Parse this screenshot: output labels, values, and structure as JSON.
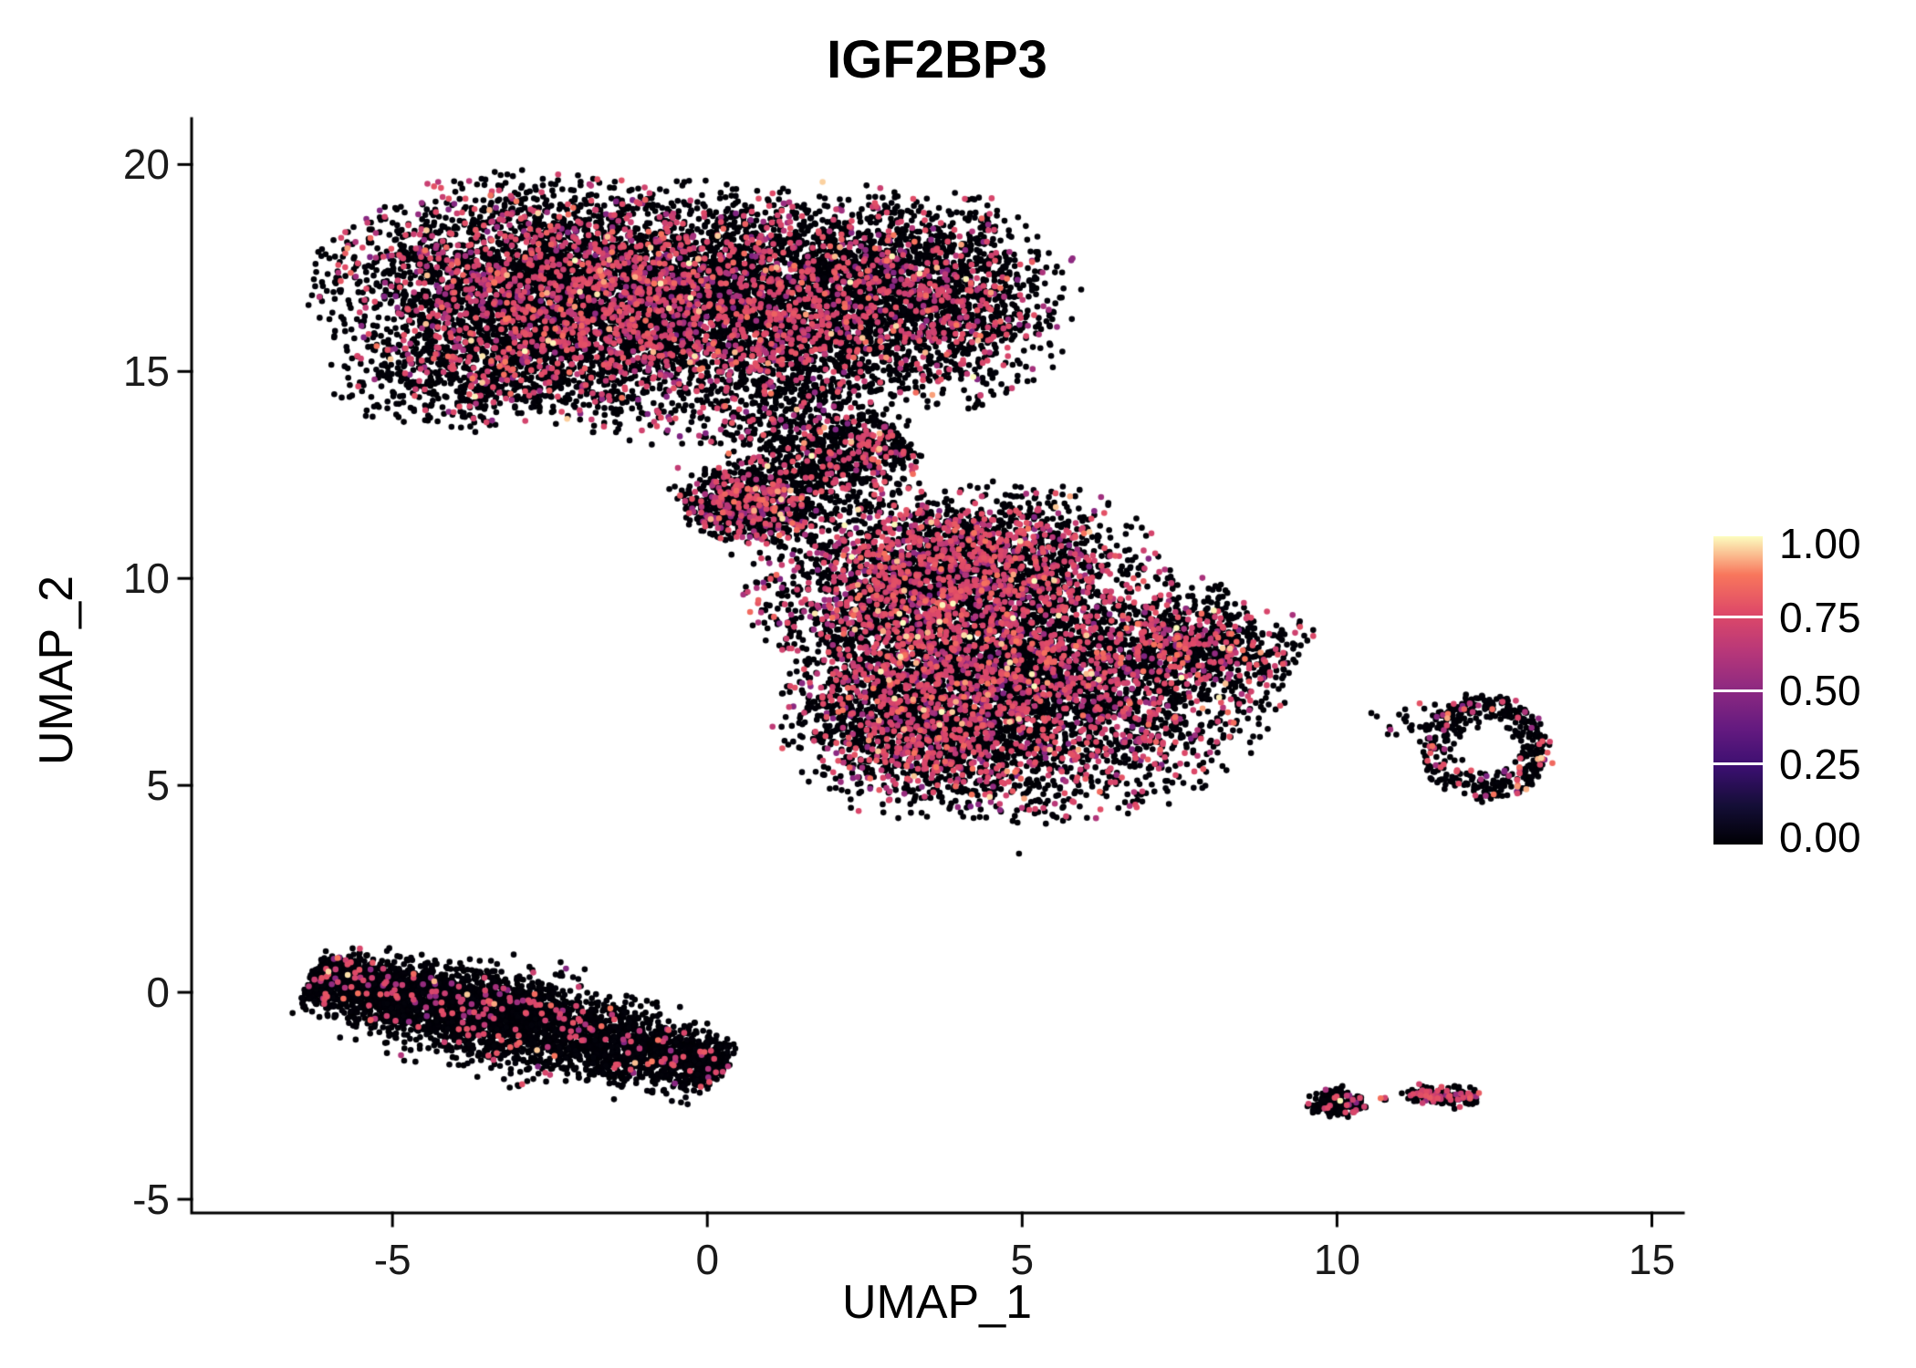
{
  "chart_data": {
    "type": "scatter",
    "title": "IGF2BP3",
    "xlabel": "UMAP_1",
    "ylabel": "UMAP_2",
    "x_ticks": [
      {
        "label": "-5",
        "value": -5
      },
      {
        "label": "0",
        "value": 0
      },
      {
        "label": "5",
        "value": 5
      },
      {
        "label": "10",
        "value": 10
      },
      {
        "label": "15",
        "value": 15
      }
    ],
    "y_ticks": [
      {
        "label": "20",
        "value": 20
      },
      {
        "label": "15",
        "value": 15
      },
      {
        "label": "10",
        "value": 10
      },
      {
        "label": "5",
        "value": 5
      },
      {
        "label": "0",
        "value": 0
      },
      {
        "label": "-5",
        "value": -5
      }
    ],
    "xlim": [
      -8.19,
      15.5
    ],
    "ylim": [
      -5.33,
      21.11
    ],
    "grid": false,
    "background": "#ffffff",
    "point_radius_px": 3.3,
    "legend": {
      "position": "right",
      "tick_labels": [
        {
          "label": "1.00",
          "value": 1.0
        },
        {
          "label": "0.75",
          "value": 0.75
        },
        {
          "label": "0.50",
          "value": 0.5
        },
        {
          "label": "0.25",
          "value": 0.25
        },
        {
          "label": "0.00",
          "value": 0.0
        }
      ],
      "bar_tick_values": [
        0.75,
        0.5,
        0.25
      ],
      "colormap": "magma",
      "colormap_stops": [
        {
          "t": 0.0,
          "c": "#000004"
        },
        {
          "t": 0.125,
          "c": "#140E36"
        },
        {
          "t": 0.25,
          "c": "#3B0F70"
        },
        {
          "t": 0.375,
          "c": "#641A80"
        },
        {
          "t": 0.5,
          "c": "#8C2981"
        },
        {
          "t": 0.625,
          "c": "#B73779"
        },
        {
          "t": 0.75,
          "c": "#DE4968"
        },
        {
          "t": 0.875,
          "c": "#F8765C"
        },
        {
          "t": 1.0,
          "c": "#FCFDBF"
        }
      ]
    },
    "clusters": [
      {
        "name": "upper-blob-a",
        "type": "gauss",
        "cx": -2.7,
        "cy": 17.0,
        "sx": 1.6,
        "sy": 1.25,
        "n": 3600,
        "colored_fraction": 0.23
      },
      {
        "name": "upper-blob-b",
        "type": "gauss",
        "cx": -0.3,
        "cy": 16.4,
        "sx": 1.5,
        "sy": 1.4,
        "n": 3000,
        "colored_fraction": 0.23
      },
      {
        "name": "upper-blob-c",
        "type": "gauss",
        "cx": 2.1,
        "cy": 17.0,
        "sx": 1.2,
        "sy": 1.15,
        "n": 1700,
        "colored_fraction": 0.2
      },
      {
        "name": "upper-blob-d",
        "type": "gauss",
        "cx": 3.8,
        "cy": 16.7,
        "sx": 0.95,
        "sy": 1.15,
        "n": 1300,
        "colored_fraction": 0.17
      },
      {
        "name": "upper-tail",
        "type": "gauss",
        "cx": -3.6,
        "cy": 14.8,
        "sx": 1.1,
        "sy": 0.55,
        "n": 500,
        "colored_fraction": 0.15
      },
      {
        "name": "neck",
        "type": "gauss",
        "cx": 1.6,
        "cy": 14.0,
        "sx": 0.7,
        "sy": 0.85,
        "n": 430,
        "colored_fraction": 0.15
      },
      {
        "name": "bridge-band",
        "type": "band",
        "x1": -0.1,
        "y1": 11.35,
        "x2": 3.1,
        "y2": 13.4,
        "sigma": 0.45,
        "n": 1100,
        "colored_fraction": 0.2
      },
      {
        "name": "bridge-knot",
        "type": "gauss",
        "cx": 0.7,
        "cy": 11.8,
        "sx": 0.5,
        "sy": 0.45,
        "n": 350,
        "colored_fraction": 0.3
      },
      {
        "name": "mid-blob-a",
        "type": "gauss",
        "cx": 3.5,
        "cy": 9.7,
        "sx": 1.3,
        "sy": 1.05,
        "n": 2400,
        "colored_fraction": 0.3
      },
      {
        "name": "mid-blob-b",
        "type": "gauss",
        "cx": 5.3,
        "cy": 7.5,
        "sx": 1.7,
        "sy": 1.5,
        "n": 3800,
        "colored_fraction": 0.28
      },
      {
        "name": "mid-blob-c",
        "type": "gauss",
        "cx": 3.3,
        "cy": 6.6,
        "sx": 1.0,
        "sy": 1.05,
        "n": 1500,
        "colored_fraction": 0.26
      },
      {
        "name": "mid-blob-d",
        "type": "gauss",
        "cx": 4.6,
        "cy": 10.8,
        "sx": 1.1,
        "sy": 0.7,
        "n": 700,
        "colored_fraction": 0.3
      },
      {
        "name": "mid-tip",
        "type": "gauss",
        "cx": 7.8,
        "cy": 8.3,
        "sx": 0.85,
        "sy": 0.55,
        "n": 600,
        "colored_fraction": 0.25
      },
      {
        "name": "right-ring",
        "type": "ring",
        "cx": 12.35,
        "cy": 5.9,
        "rx": 1.0,
        "ry": 1.25,
        "inner": 0.45,
        "n": 430,
        "colored_fraction": 0.13
      },
      {
        "name": "ring-outliers",
        "type": "gauss",
        "cx": 11.3,
        "cy": 6.6,
        "sx": 0.45,
        "sy": 0.3,
        "n": 22,
        "colored_fraction": 0.1
      },
      {
        "name": "lower-band",
        "type": "band",
        "x1": -6.3,
        "y1": 0.3,
        "x2": 0.25,
        "y2": -1.8,
        "sigma": 0.4,
        "n": 3400,
        "colored_fraction": 0.05
      },
      {
        "name": "lower-band-top",
        "type": "band",
        "x1": -6.1,
        "y1": 0.55,
        "x2": -2.2,
        "y2": -0.5,
        "sigma": 0.25,
        "n": 700,
        "colored_fraction": 0.07
      },
      {
        "name": "small-a",
        "type": "gauss",
        "cx": 10.0,
        "cy": -2.65,
        "sx": 0.22,
        "sy": 0.17,
        "n": 170,
        "colored_fraction": 0.12
      },
      {
        "name": "small-b",
        "type": "band",
        "x1": 11.15,
        "y1": -2.45,
        "x2": 12.2,
        "y2": -2.55,
        "sigma": 0.09,
        "n": 160,
        "colored_fraction": 0.3
      },
      {
        "name": "small-dot",
        "type": "gauss",
        "cx": 10.75,
        "cy": -2.55,
        "sx": 0.05,
        "sy": 0.04,
        "n": 4,
        "colored_fraction": 0.5
      }
    ],
    "outliers": [
      {
        "x": 4.95,
        "y": 3.35,
        "v": 0.0
      },
      {
        "x": 9.0,
        "y": 8.25,
        "v": 0.0
      },
      {
        "x": 0.5,
        "y": 13.9,
        "v": 0.0
      },
      {
        "x": 10.05,
        "y": -2.62,
        "v": 1.0
      },
      {
        "x": 3.4,
        "y": 12.1,
        "v": 0.75
      }
    ]
  }
}
